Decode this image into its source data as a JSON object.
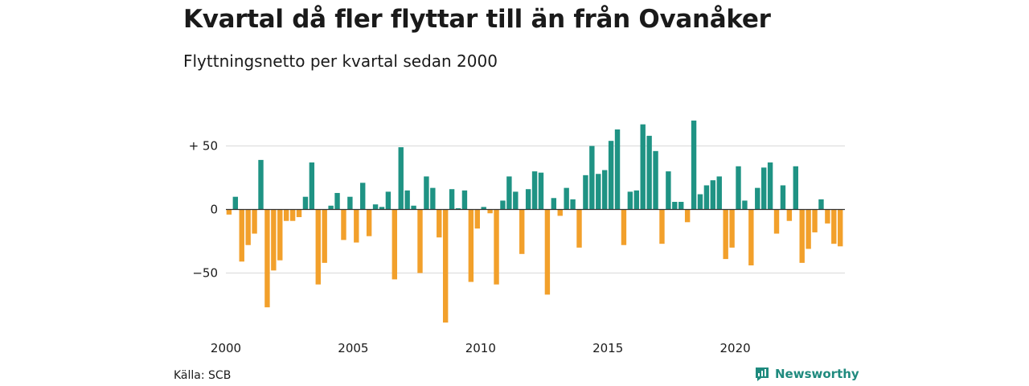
{
  "title": "Kvartal då fler flyttar till än från Ovanåker",
  "subtitle": "Flyttningsnetto per kvartal sedan 2000",
  "source": "Källa: SCB",
  "brand": "Newsworthy",
  "colors": {
    "positive": "#1f9384",
    "negative": "#f2a02b",
    "grid": "#d9d9d9",
    "zero": "#333333"
  },
  "chart_data": {
    "type": "bar",
    "title": "Kvartal då fler flyttar till än från Ovanåker",
    "subtitle": "Flyttningsnetto per kvartal sedan 2000",
    "xlabel": "",
    "ylabel": "",
    "ylim": [
      -90,
      73
    ],
    "grid": true,
    "y_ticks": [
      {
        "value": 50,
        "label": "+ 50"
      },
      {
        "value": 0,
        "label": "0"
      },
      {
        "value": -50,
        "label": "−50"
      }
    ],
    "x_ticks": [
      {
        "value": 2000,
        "label": "2000"
      },
      {
        "value": 2005,
        "label": "2005"
      },
      {
        "value": 2010,
        "label": "2010"
      },
      {
        "value": 2015,
        "label": "2015"
      },
      {
        "value": 2020,
        "label": "2020"
      }
    ],
    "start_year": 2000,
    "values": [
      -4,
      10,
      -41,
      -28,
      -19,
      39,
      -77,
      -48,
      -40,
      -9,
      -9,
      -6,
      10,
      37,
      -59,
      -42,
      3,
      13,
      -24,
      10,
      -26,
      21,
      -21,
      4,
      2,
      14,
      -55,
      49,
      15,
      3,
      -50,
      26,
      17,
      -22,
      -89,
      16,
      1,
      15,
      -57,
      -15,
      2,
      -3,
      -59,
      7,
      26,
      14,
      -35,
      16,
      30,
      29,
      -67,
      9,
      -5,
      17,
      8,
      -30,
      27,
      50,
      28,
      31,
      54,
      63,
      -28,
      14,
      15,
      67,
      58,
      46,
      -27,
      30,
      6,
      6,
      -10,
      70,
      12,
      19,
      23,
      26,
      -39,
      -30,
      34,
      7,
      -44,
      17,
      33,
      37,
      -19,
      19,
      -9,
      34,
      -42,
      -31,
      -18,
      8,
      -11,
      -27,
      -29
    ]
  }
}
